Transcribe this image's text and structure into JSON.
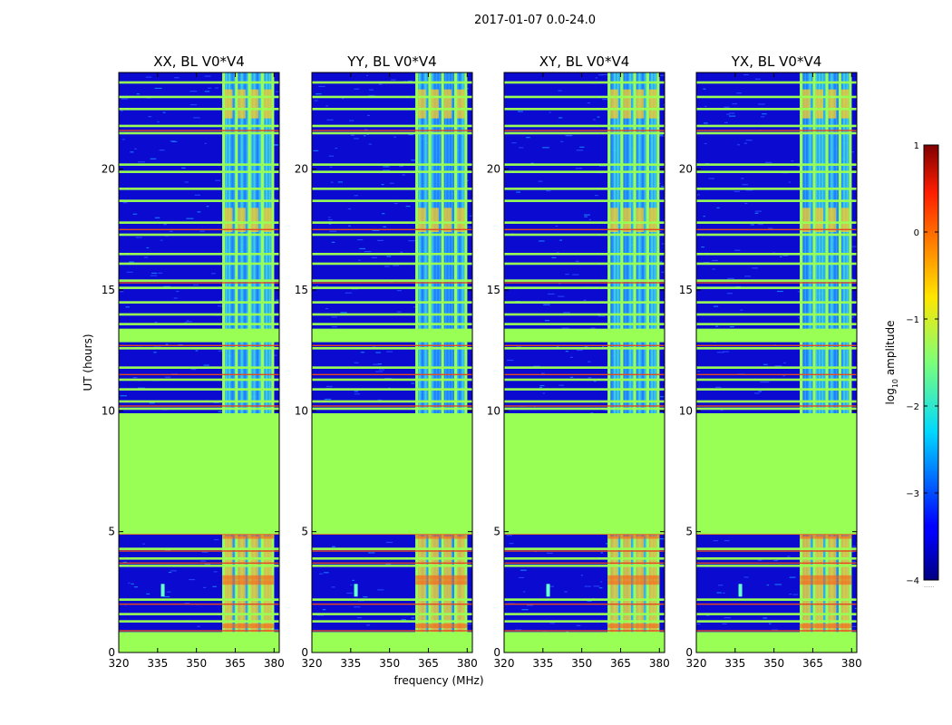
{
  "figure": {
    "suptitle": "2017-01-07 0.0-24.0",
    "xlabel": "frequency (MHz)",
    "ylabel": "UT (hours)",
    "colorbar_label_main": "log",
    "colorbar_label_sub": "10",
    "colorbar_label_rest": " amplitude",
    "colorbar_footnote": "......"
  },
  "chart_data": [
    {
      "type": "heatmap",
      "title": "XX, BL V0*V4",
      "xlabel": "frequency (MHz)",
      "ylabel": "UT (hours)",
      "xlim": [
        320,
        382
      ],
      "ylim": [
        0,
        24
      ],
      "xticks": [
        320,
        335,
        350,
        365,
        380
      ],
      "yticks": [
        0,
        5,
        10,
        15,
        20
      ],
      "z_variable": "log10 amplitude",
      "flagged_ut_range": [
        4.9,
        9.9
      ],
      "rfi_band_mhz": [
        360,
        380
      ],
      "bright_stripes_ut": [
        4.8,
        3.1,
        2.9,
        1.1
      ]
    },
    {
      "type": "heatmap",
      "title": "YY, BL V0*V4",
      "xlabel": "frequency (MHz)",
      "ylabel": "UT (hours)",
      "xlim": [
        320,
        382
      ],
      "ylim": [
        0,
        24
      ],
      "xticks": [
        320,
        335,
        350,
        365,
        380
      ],
      "yticks": [
        0,
        5,
        10,
        15,
        20
      ],
      "z_variable": "log10 amplitude",
      "flagged_ut_range": [
        4.9,
        9.9
      ],
      "rfi_band_mhz": [
        360,
        380
      ],
      "bright_stripes_ut": [
        4.8,
        3.1,
        2.9,
        1.1
      ]
    },
    {
      "type": "heatmap",
      "title": "XY, BL V0*V4",
      "xlabel": "frequency (MHz)",
      "ylabel": "UT (hours)",
      "xlim": [
        320,
        382
      ],
      "ylim": [
        0,
        24
      ],
      "xticks": [
        320,
        335,
        350,
        365,
        380
      ],
      "yticks": [
        0,
        5,
        10,
        15,
        20
      ],
      "z_variable": "log10 amplitude",
      "flagged_ut_range": [
        4.9,
        9.9
      ],
      "rfi_band_mhz": [
        360,
        380
      ],
      "bright_stripes_ut": [
        4.8,
        3.1,
        2.9,
        1.1
      ]
    },
    {
      "type": "heatmap",
      "title": "YX, BL V0*V4",
      "xlabel": "frequency (MHz)",
      "ylabel": "UT (hours)",
      "xlim": [
        320,
        382
      ],
      "ylim": [
        0,
        24
      ],
      "xticks": [
        320,
        335,
        350,
        365,
        380
      ],
      "yticks": [
        0,
        5,
        10,
        15,
        20
      ],
      "z_variable": "log10 amplitude",
      "flagged_ut_range": [
        4.9,
        9.9
      ],
      "rfi_band_mhz": [
        360,
        380
      ],
      "bright_stripes_ut": [
        4.8,
        3.1,
        2.9,
        1.1
      ]
    }
  ],
  "colorbar": {
    "range": [
      -4,
      1
    ],
    "ticks": [
      1,
      0,
      -1,
      -2,
      -3,
      -4
    ],
    "tick_labels": [
      "1",
      "0",
      "−1",
      "−2",
      "−3",
      "−4"
    ],
    "colormap": "jet"
  },
  "colors": {
    "flagged": "#99ff55",
    "low": "#0a0ad0"
  }
}
